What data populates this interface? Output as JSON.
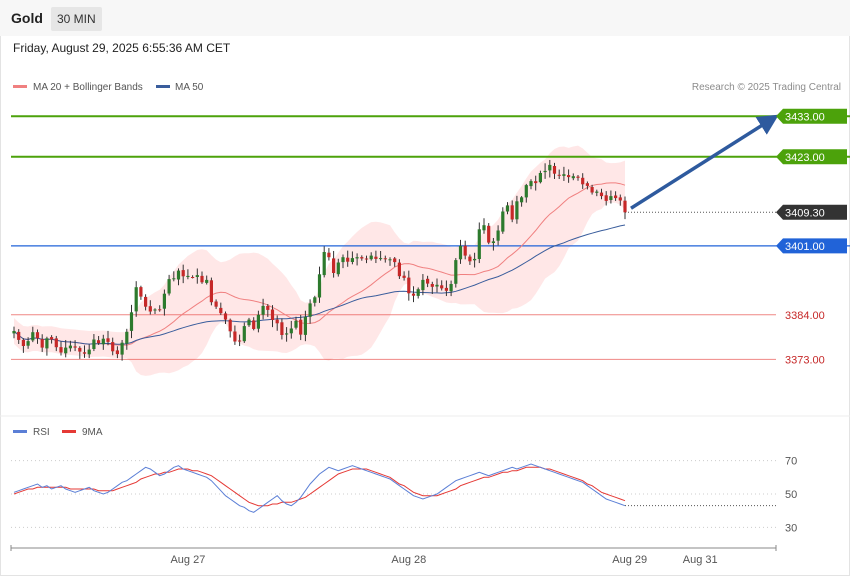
{
  "header": {
    "asset": "Gold",
    "timeframe": "30 MIN",
    "datetime": "Friday, August 29, 2025 6:55:36 AM CET"
  },
  "legend": {
    "ma20": "MA 20 + Bollinger Bands",
    "ma50": "MA 50",
    "copyright": "Research © 2025 Trading Central"
  },
  "rsi_legend": {
    "rsi": "RSI",
    "ma9": "9MA"
  },
  "colors": {
    "bull": "#2d7a2d",
    "bear": "#c62828",
    "ma20": "#f08080",
    "bb_fill": "#ffe3e3",
    "ma50": "#3a5d9c",
    "target": "#4ca20b",
    "current": "#333333",
    "pivot": "#2163d8",
    "support": "#e53935",
    "rsi": "#5b7fd6",
    "rsi_ma": "#e53935"
  },
  "chart_data": [
    {
      "type": "candlestick",
      "ylim": [
        3360,
        3438
      ],
      "price_levels": [
        {
          "value": 3433.0,
          "label": "3433.00",
          "role": "target"
        },
        {
          "value": 3423.0,
          "label": "3423.00",
          "role": "target"
        },
        {
          "value": 3409.3,
          "label": "3409.30",
          "role": "current"
        },
        {
          "value": 3401.0,
          "label": "3401.00",
          "role": "pivot"
        },
        {
          "value": 3384.0,
          "label": "3384.00",
          "role": "support"
        },
        {
          "value": 3373.0,
          "label": "3373.00",
          "role": "support"
        }
      ],
      "x_labels": [
        {
          "label": "Aug 27",
          "bar": 37
        },
        {
          "label": "Aug 28",
          "bar": 84
        },
        {
          "label": "Aug 29",
          "bar": 131
        },
        {
          "label": "Aug 31",
          "bar": 146
        }
      ],
      "close": [
        3380.0,
        3377.8,
        3376.3,
        3377.5,
        3379.7,
        3378.2,
        3375.9,
        3378.2,
        3377.9,
        3376.0,
        3374.7,
        3375.9,
        3376.4,
        3375.9,
        3374.9,
        3374.4,
        3375.4,
        3377.9,
        3377.0,
        3378.1,
        3377.3,
        3375.0,
        3374.3,
        3377.1,
        3379.8,
        3384.6,
        3390.8,
        3388.5,
        3386.0,
        3384.8,
        3385.3,
        3385.2,
        3389.2,
        3392.8,
        3393.0,
        3394.9,
        3393.5,
        3393.6,
        3393.3,
        3393.8,
        3392.0,
        3392.6,
        3387.1,
        3386.0,
        3384.4,
        3382.8,
        3379.9,
        3377.4,
        3377.6,
        3381.2,
        3382.8,
        3380.5,
        3384.0,
        3386.2,
        3385.2,
        3382.7,
        3381.9,
        3379.0,
        3379.4,
        3380.6,
        3382.5,
        3379.1,
        3383.5,
        3386.8,
        3388.3,
        3394.0,
        3399.5,
        3398.2,
        3394.3,
        3396.9,
        3398.2,
        3397.1,
        3398.0,
        3398.2,
        3397.9,
        3397.7,
        3398.6,
        3397.8,
        3398.0,
        3397.8,
        3397.7,
        3397.0,
        3393.5,
        3393.1,
        3389.3,
        3388.7,
        3390.3,
        3392.6,
        3391.7,
        3390.9,
        3391.4,
        3390.5,
        3389.9,
        3391.6,
        3397.5,
        3401.0,
        3398.6,
        3397.2,
        3397.8,
        3405.1,
        3406.1,
        3401.8,
        3402.1,
        3404.8,
        3409.5,
        3411.0,
        3407.5,
        3412.0,
        3413.0,
        3416.0,
        3417.0,
        3416.5,
        3419.0,
        3419.5,
        3421.0,
        3418.8,
        3418.4,
        3418.7,
        3418.0,
        3418.2,
        3417.8,
        3416.2,
        3415.8,
        3414.2,
        3414.4,
        3413.3,
        3412.1,
        3413.3,
        3412.8,
        3412.2,
        3409.3
      ],
      "candles_note": "open/high/low derived in script from close series"
    },
    {
      "type": "line",
      "name": "RSI",
      "ylim": [
        20,
        80
      ],
      "y_ticks": [
        70,
        50,
        30
      ],
      "series": [
        {
          "name": "RSI",
          "values": [
            51,
            52,
            53,
            54,
            55,
            56,
            54,
            55,
            53,
            54,
            55,
            53,
            52,
            51,
            52,
            53,
            54,
            52,
            51,
            50,
            51,
            53,
            55,
            57,
            58,
            60,
            62,
            64,
            66,
            65,
            63,
            61,
            62,
            64,
            66,
            67,
            65,
            64,
            63,
            62,
            61,
            60,
            58,
            55,
            52,
            49,
            47,
            45,
            43,
            42,
            40,
            39,
            41,
            43,
            45,
            47,
            49,
            46,
            44,
            43,
            45,
            48,
            52,
            56,
            59,
            62,
            64,
            66,
            65,
            64,
            65,
            66,
            67,
            66,
            65,
            64,
            63,
            62,
            61,
            60,
            59,
            57,
            55,
            53,
            51,
            49,
            48,
            47,
            48,
            49,
            50,
            52,
            54,
            56,
            58,
            59,
            60,
            61,
            62,
            63,
            62,
            61,
            62,
            63,
            64,
            65,
            66,
            65,
            66,
            67,
            68,
            67,
            66,
            65,
            64,
            63,
            62,
            61,
            60,
            59,
            58,
            57,
            55,
            53,
            51,
            49,
            47,
            46,
            45,
            44,
            43
          ]
        },
        {
          "name": "9MA",
          "values": [
            50,
            51,
            52,
            53,
            53,
            54,
            54,
            54,
            54,
            54,
            54,
            54,
            53,
            53,
            53,
            53,
            53,
            53,
            52,
            52,
            52,
            52,
            53,
            54,
            55,
            56,
            57,
            59,
            60,
            61,
            62,
            62,
            63,
            63,
            64,
            65,
            65,
            65,
            64,
            64,
            63,
            62,
            61,
            59,
            57,
            55,
            53,
            51,
            49,
            47,
            45,
            44,
            43,
            43,
            43,
            44,
            44,
            45,
            45,
            45,
            46,
            47,
            48,
            50,
            52,
            54,
            56,
            58,
            60,
            62,
            63,
            64,
            65,
            65,
            65,
            65,
            64,
            63,
            62,
            61,
            60,
            58,
            56,
            55,
            53,
            51,
            50,
            49,
            49,
            49,
            49,
            50,
            51,
            52,
            53,
            55,
            56,
            57,
            58,
            59,
            60,
            60,
            61,
            62,
            63,
            63,
            64,
            64,
            65,
            66,
            66,
            66,
            66,
            65,
            65,
            64,
            63,
            62,
            61,
            60,
            59,
            58,
            56,
            55,
            53,
            51,
            50,
            49,
            48,
            47,
            46
          ]
        }
      ]
    }
  ]
}
